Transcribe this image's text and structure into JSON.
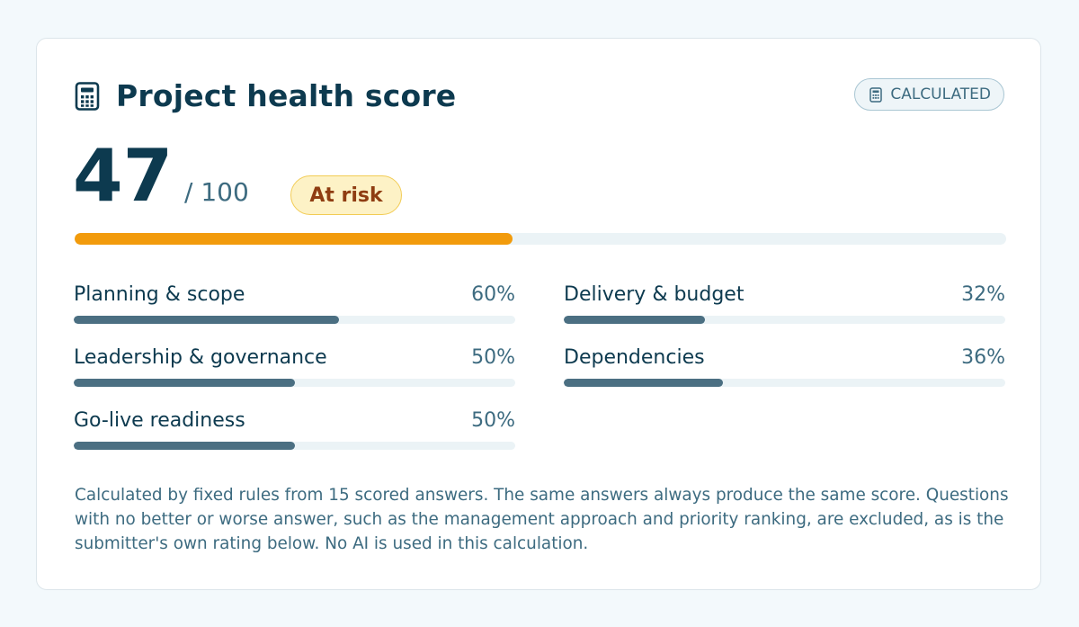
{
  "card": {
    "title": "Project health score",
    "title_icon": "calculator-icon",
    "mode_badge": {
      "label": "CALCULATED",
      "icon": "calculator-icon"
    }
  },
  "score": {
    "value": "47",
    "max_label": "/ 100",
    "progress_fraction": 0.47,
    "status": "At risk",
    "status_colors": {
      "fill": "#fdf2c6",
      "border": "#f2cc55",
      "text": "#8f3d12"
    },
    "bar_color": "#f29b0c"
  },
  "metrics": [
    {
      "label": "Planning & scope",
      "percent_text": "60%",
      "value": 0.6
    },
    {
      "label": "Delivery & budget",
      "percent_text": "32%",
      "value": 0.32
    },
    {
      "label": "Leadership & governance",
      "percent_text": "50%",
      "value": 0.5
    },
    {
      "label": "Dependencies",
      "percent_text": "36%",
      "value": 0.36
    },
    {
      "label": "Go-live readiness",
      "percent_text": "50%",
      "value": 0.5
    }
  ],
  "metric_bar_color": "#4b6f82",
  "footnote": "Calculated by fixed rules from 15 scored answers. The same answers always produce the same score. Questions with no better or worse answer, such as the management approach and priority ranking, are excluded, as is the submitter's own rating below. No AI is used in this calculation."
}
